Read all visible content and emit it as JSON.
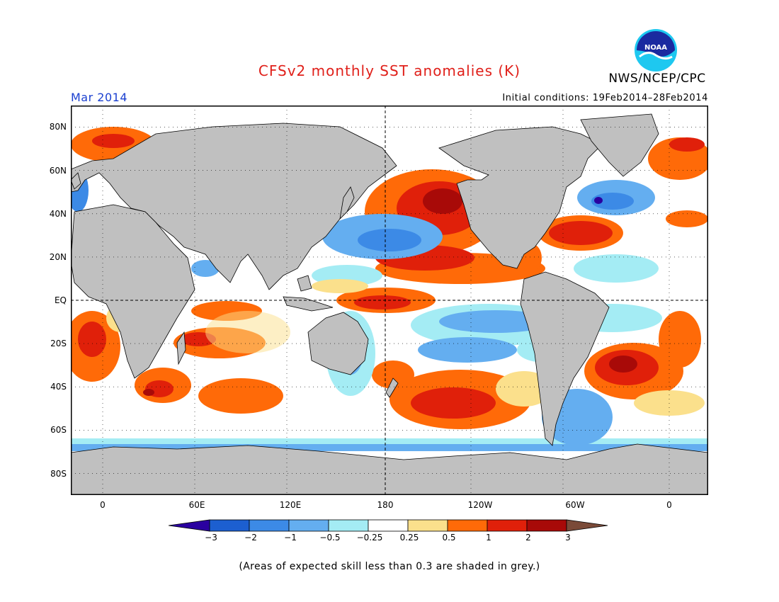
{
  "title": "CFSv2 monthly SST anomalies (K)",
  "center_name": "NWS/NCEP/CPC",
  "logo_text": "NOAA",
  "target_month": "Mar 2014",
  "initial_conditions": "Initial conditions: 19Feb2014–28Feb2014",
  "lat_labels": [
    "80N",
    "60N",
    "40N",
    "20N",
    "EQ",
    "20S",
    "40S",
    "60S",
    "80S"
  ],
  "lon_labels": [
    "0",
    "60E",
    "120E",
    "180",
    "120W",
    "60W",
    "0"
  ],
  "colorbar": {
    "labels": [
      "−3",
      "−2",
      "−1",
      "−0.5",
      "−0.25",
      "0.25",
      "0.5",
      "1",
      "2",
      "3"
    ],
    "colors": [
      "#2a00a0",
      "#1c5fd0",
      "#3c8ae6",
      "#64aef0",
      "#a4ecf4",
      "#ffffff",
      "#fbe08c",
      "#ff6a08",
      "#e0200a",
      "#a80a08",
      "#7a4a38"
    ]
  },
  "note": "(Areas of expected skill less than 0.3 are shaded in grey.)",
  "colors": {
    "land": "#c0c0c0",
    "title": "#e0201a",
    "month": "#1a3fd0"
  }
}
